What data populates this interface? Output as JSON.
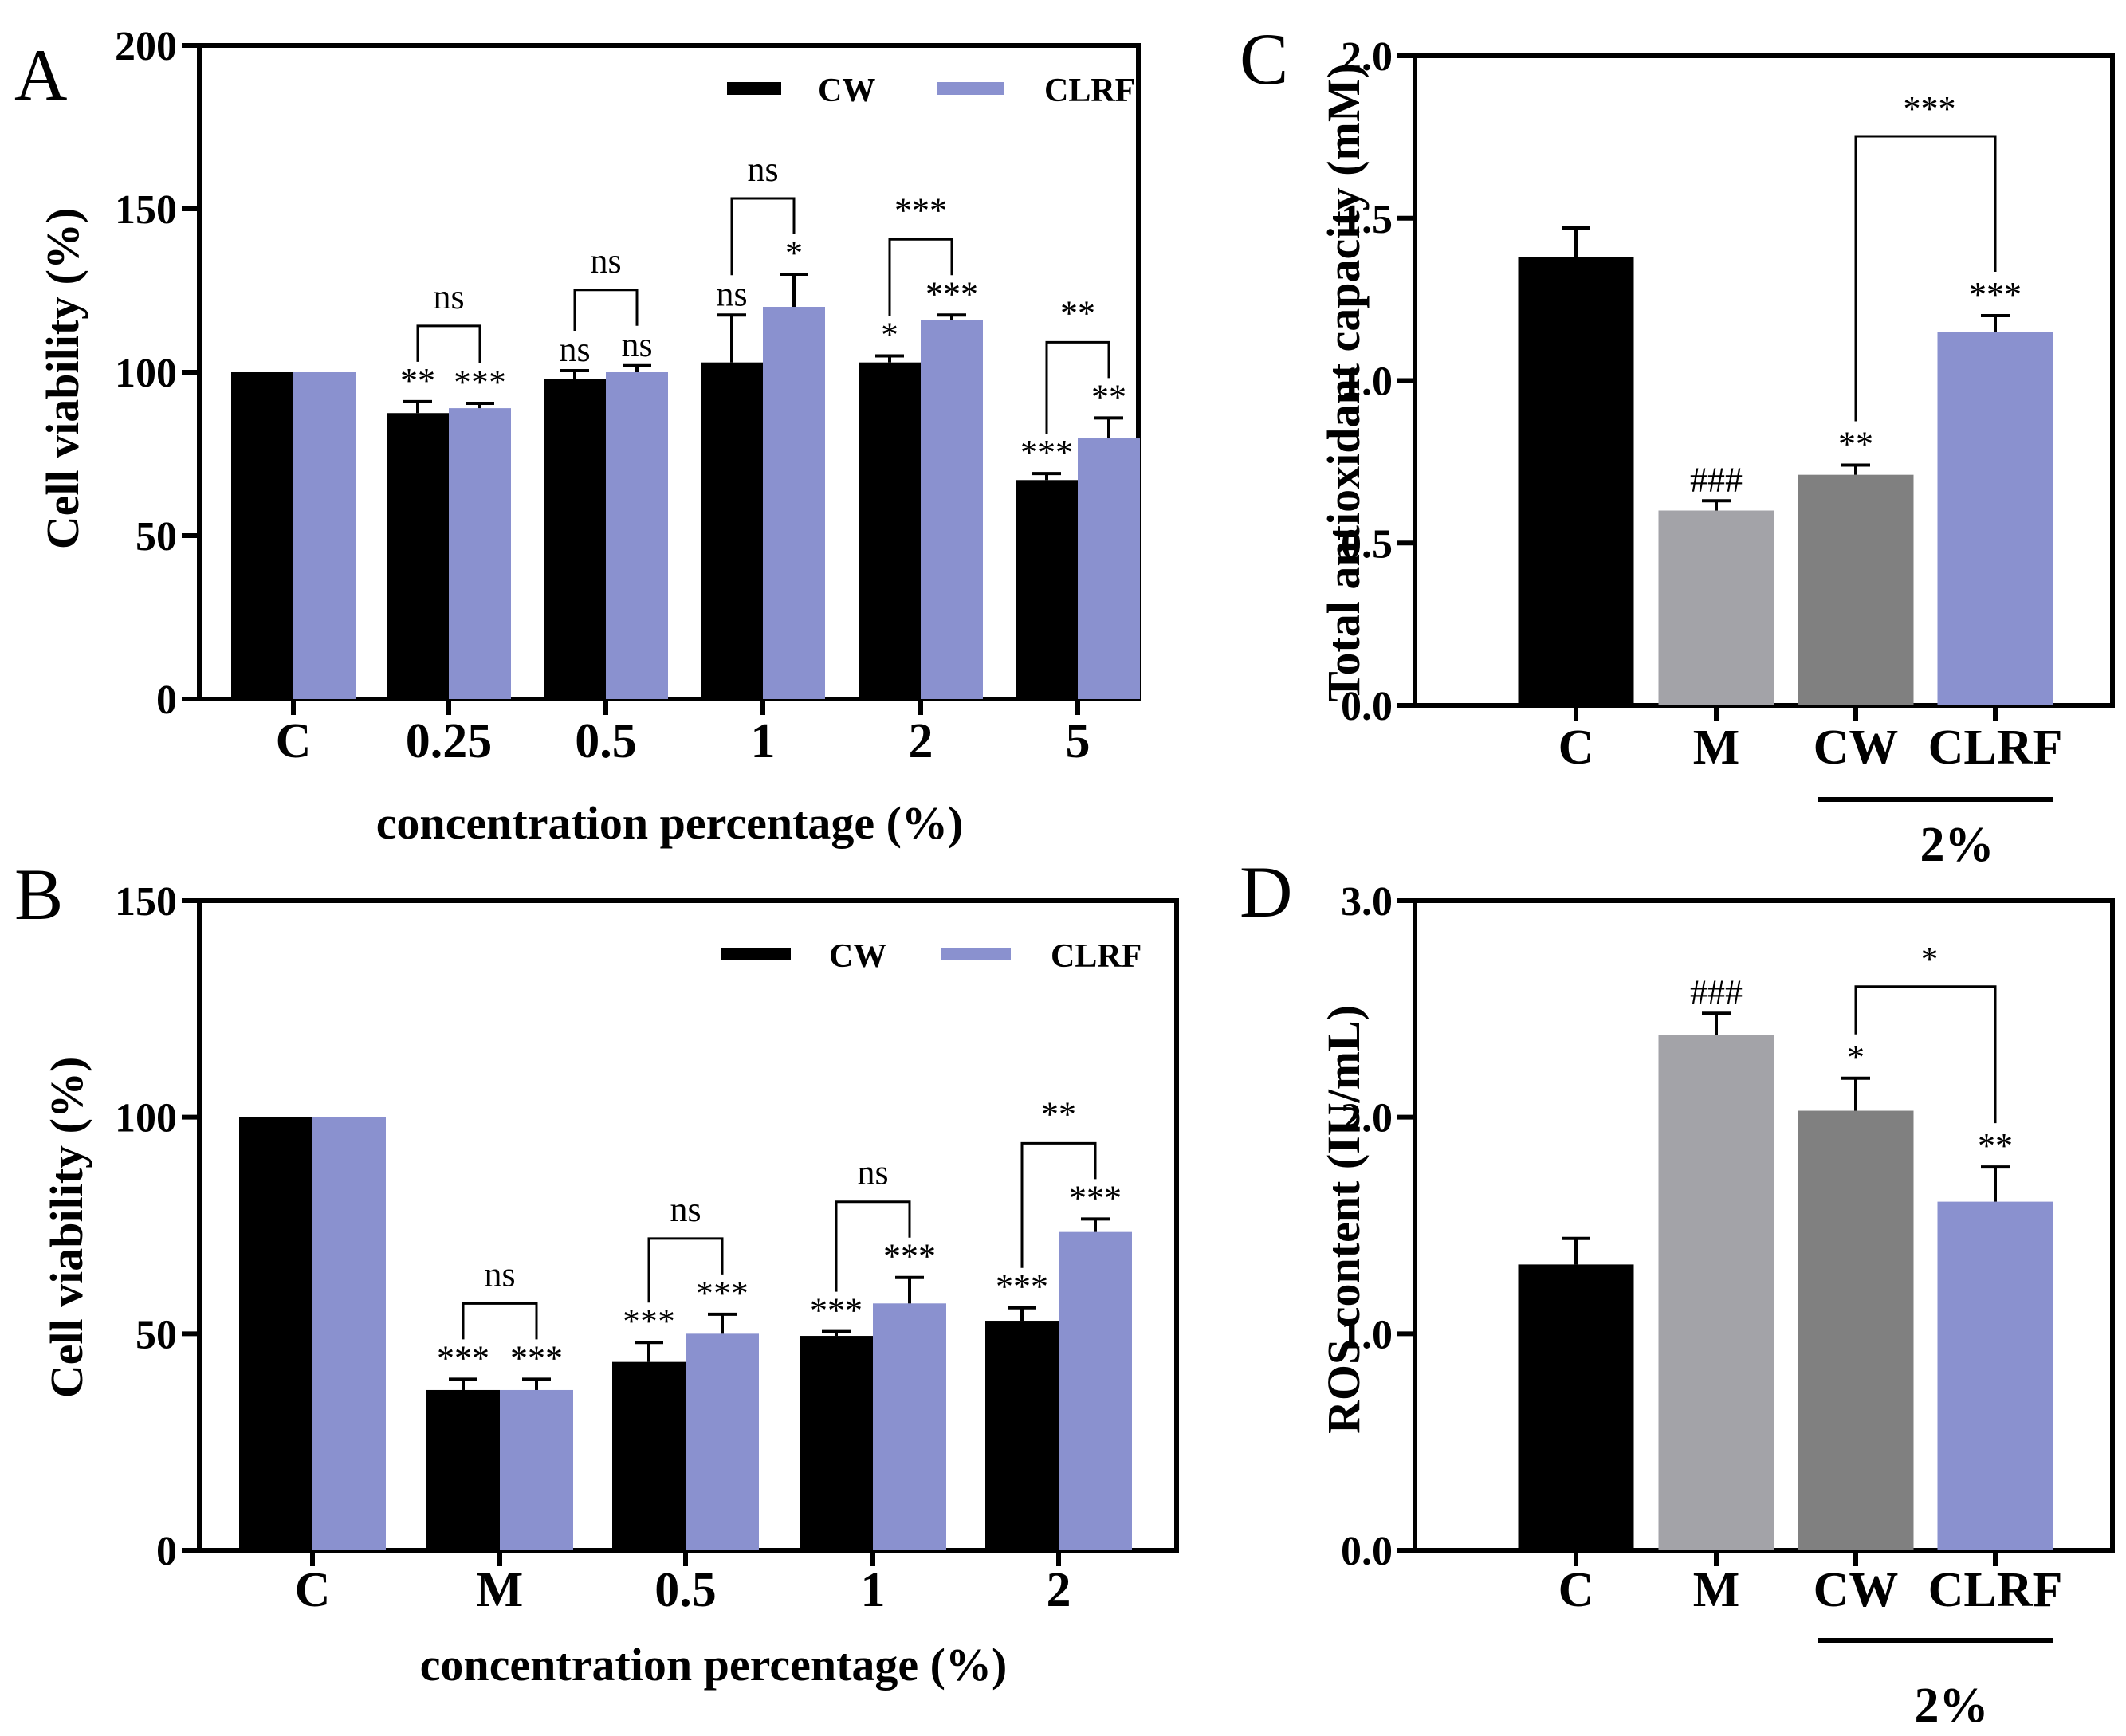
{
  "colors": {
    "cw": "#000000",
    "clrf": "#8a91cf",
    "m_gray": "#a3a3a8",
    "cw_gray": "#808080",
    "axis": "#000000"
  },
  "chart_data": [
    {
      "panel": "A",
      "type": "bar",
      "xlabel": "concentration percentage (%)",
      "ylabel": "Cell viability (%)",
      "ylim": [
        0,
        200
      ],
      "yticks": [
        "0",
        "50",
        "100",
        "150",
        "200"
      ],
      "categories": [
        "C",
        "0.25",
        "0.5",
        "1",
        "2",
        "5"
      ],
      "legend": [
        "CW",
        "CLRF"
      ],
      "series": [
        {
          "name": "CW",
          "values": [
            100,
            87.5,
            98,
            103,
            103,
            67
          ],
          "errors": [
            0,
            3.5,
            2.5,
            14.5,
            2,
            2
          ],
          "labels": [
            "",
            "**",
            "ns",
            "ns",
            "*",
            "***"
          ]
        },
        {
          "name": "CLRF",
          "values": [
            100,
            89,
            100,
            120,
            116,
            80
          ],
          "errors": [
            0,
            1.5,
            2,
            10,
            1.5,
            6
          ],
          "labels": [
            "",
            "***",
            "ns",
            "*",
            "***",
            "**"
          ]
        }
      ],
      "brackets": [
        "ns",
        "ns",
        "ns",
        "***",
        "**"
      ]
    },
    {
      "panel": "B",
      "type": "bar",
      "xlabel": "concentration percentage (%)",
      "ylabel": "Cell viability (%)",
      "ylim": [
        0,
        150
      ],
      "yticks": [
        "0",
        "50",
        "100",
        "150"
      ],
      "categories": [
        "C",
        "M",
        "0.5",
        "1",
        "2"
      ],
      "legend": [
        "CW",
        "CLRF"
      ],
      "series": [
        {
          "name": "CW",
          "values": [
            100,
            37,
            43.5,
            49.5,
            53
          ],
          "errors": [
            0,
            2.5,
            4.5,
            1,
            3
          ],
          "labels": [
            "",
            "***",
            "***",
            "***",
            "***"
          ]
        },
        {
          "name": "CLRF",
          "values": [
            100,
            37,
            50,
            57,
            73.5
          ],
          "errors": [
            0,
            2.5,
            4.5,
            6,
            3
          ],
          "labels": [
            "",
            "***",
            "***",
            "***",
            "***"
          ]
        }
      ],
      "brackets": [
        "ns",
        "ns",
        "ns",
        "**"
      ]
    },
    {
      "panel": "C",
      "type": "bar",
      "xlabel": "",
      "ylabel": "Total antioxidant capacity (mM)",
      "ylim": [
        0,
        2.0
      ],
      "yticks": [
        "0.0",
        "0.5",
        "1.0",
        "1.5",
        "2.0"
      ],
      "categories": [
        "C",
        "M",
        "CW",
        "CLRF"
      ],
      "values": [
        1.38,
        0.6,
        0.71,
        1.15
      ],
      "errors": [
        0.09,
        0.03,
        0.03,
        0.05
      ],
      "labels": [
        "",
        "###",
        "**",
        "***"
      ],
      "bracket": "***",
      "group_label": "2%"
    },
    {
      "panel": "D",
      "type": "bar",
      "xlabel": "",
      "ylabel": "ROS content (IU/mL)",
      "ylim": [
        0,
        3.0
      ],
      "yticks": [
        "0.0",
        "1.0",
        "2.0",
        "3.0"
      ],
      "categories": [
        "C",
        "M",
        "CW",
        "CLRF"
      ],
      "values": [
        1.32,
        2.38,
        2.03,
        1.61
      ],
      "errors": [
        0.12,
        0.1,
        0.15,
        0.16
      ],
      "labels": [
        "",
        "###",
        "*",
        "**"
      ],
      "bracket": "*",
      "group_label": "2%"
    }
  ]
}
